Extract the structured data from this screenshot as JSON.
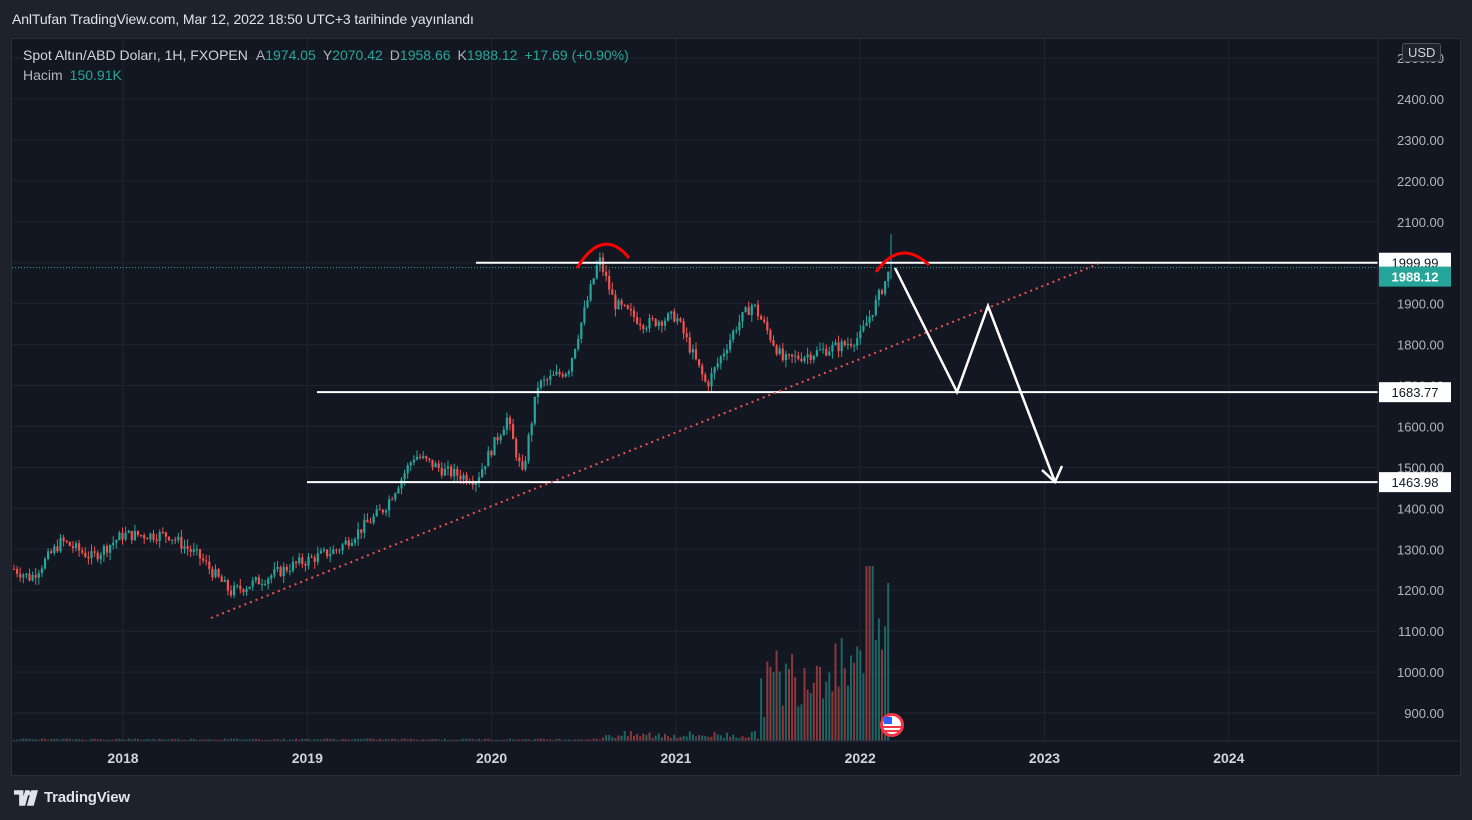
{
  "header": {
    "published_text": "AnlTufan TradingView.com, Mar 12, 2022 18:50 UTC+3 tarihinde yayınlandı"
  },
  "legend": {
    "symbol": "Spot Altın/ABD Doları, 1H, FXOPEN",
    "open_key": "A",
    "open": "1974.05",
    "high_key": "Y",
    "high": "2070.42",
    "low_key": "D",
    "low": "1958.66",
    "close_key": "K",
    "close": "1988.12",
    "change": "+17.69 (+0.90%)",
    "volume_label": "Hacim",
    "volume": "150.91K"
  },
  "currency_button": "USD",
  "footer": {
    "brand": "TradingView"
  },
  "colors": {
    "up": "#26a69a",
    "down": "#ef5350",
    "last_price_badge": "#26a69a",
    "trendline": "#ef5350",
    "drawing": "#ffffff",
    "arc": "#ff0000"
  },
  "icons": {
    "flag": "us-flag-icon",
    "logo": "tradingview-logo-icon"
  },
  "chart_data": {
    "type": "candlestick",
    "x_ticks": [
      "2018",
      "2019",
      "2020",
      "2021",
      "2022",
      "2023",
      "2024"
    ],
    "y_ticks": [
      "900.00",
      "1000.00",
      "1100.00",
      "1200.00",
      "1300.00",
      "1400.00",
      "1500.00",
      "1600.00",
      "1700.00",
      "1800.00",
      "1900.00",
      "2000.00",
      "2100.00",
      "2200.00",
      "2300.00",
      "2400.00",
      "2500.00"
    ],
    "ylim": [
      840,
      2530
    ],
    "last_price": 1988.12,
    "horizontal_levels": [
      {
        "label": "1999.99",
        "value": 1999.99
      },
      {
        "label": "1683.77",
        "value": 1683.77
      },
      {
        "label": "1463.98",
        "value": 1463.98
      }
    ],
    "price_path": [
      [
        "2017-05",
        1270
      ],
      [
        "2017-07",
        1230
      ],
      [
        "2017-09",
        1320
      ],
      [
        "2017-11",
        1280
      ],
      [
        "2018-01",
        1335
      ],
      [
        "2018-04",
        1335
      ],
      [
        "2018-06",
        1280
      ],
      [
        "2018-08",
        1195
      ],
      [
        "2018-10",
        1225
      ],
      [
        "2018-12",
        1260
      ],
      [
        "2019-03",
        1300
      ],
      [
        "2019-06",
        1400
      ],
      [
        "2019-08",
        1530
      ],
      [
        "2019-10",
        1490
      ],
      [
        "2019-12",
        1470
      ],
      [
        "2020-02",
        1620
      ],
      [
        "2020-03",
        1480
      ],
      [
        "2020-04",
        1700
      ],
      [
        "2020-06",
        1740
      ],
      [
        "2020-08",
        2010
      ],
      [
        "2020-09",
        1900
      ],
      [
        "2020-11",
        1850
      ],
      [
        "2021-01",
        1870
      ],
      [
        "2021-03",
        1700
      ],
      [
        "2021-05",
        1850
      ],
      [
        "2021-06",
        1900
      ],
      [
        "2021-08",
        1760
      ],
      [
        "2021-10",
        1780
      ],
      [
        "2021-12",
        1800
      ],
      [
        "2022-01",
        1820
      ],
      [
        "2022-02",
        1900
      ],
      [
        "2022-03",
        1988
      ]
    ],
    "volume_bars": "sparse low volume until mid-2021, rising sharply into 2022",
    "annotations": {
      "trendline": "dotted rising support from mid-2018 lows to 2022",
      "double_top_arcs": 2,
      "projected_path": [
        [
          "2022-03",
          1990
        ],
        [
          "2022-07",
          1683
        ],
        [
          "2022-10",
          1885
        ],
        [
          "2023-01",
          1464
        ]
      ]
    }
  }
}
